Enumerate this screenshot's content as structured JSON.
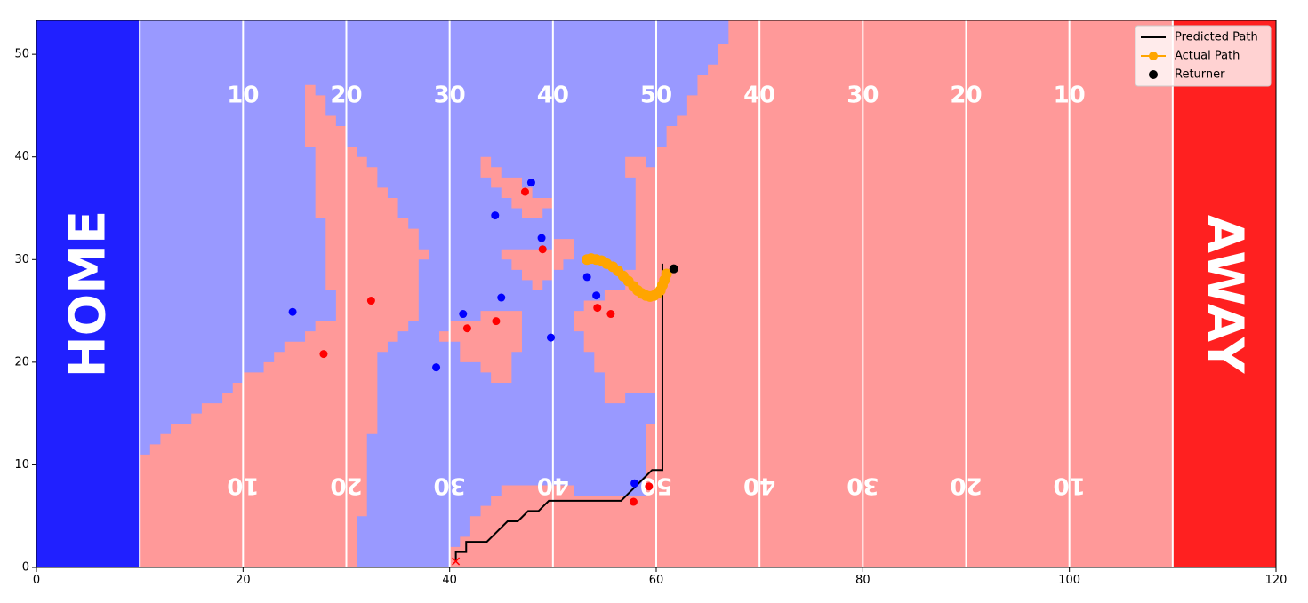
{
  "chart_data": {
    "type": "scatter",
    "title": "",
    "xlabel": "",
    "ylabel": "",
    "xlim": [
      0,
      120
    ],
    "ylim": [
      0,
      53.3
    ],
    "x_ticks": [
      0,
      20,
      40,
      60,
      80,
      100,
      120
    ],
    "y_ticks": [
      0,
      10,
      20,
      30,
      40,
      50
    ],
    "grid": false,
    "legend_position": "top-right",
    "colors": {
      "home_endzone": "#2020ff",
      "away_endzone": "#ff2020",
      "home_region": "#9999ff",
      "away_region": "#ff9999",
      "home_players": "#0000ff",
      "away_players": "#ff0000",
      "predicted_path": "#000000",
      "actual_path": "#ffa500",
      "returner": "#000000",
      "yard_lines": "#ffffff"
    },
    "endzones": {
      "home_label": "HOME",
      "away_label": "AWAY",
      "home_range": [
        0,
        10
      ],
      "away_range": [
        110,
        120
      ]
    },
    "yard_lines_x": [
      10,
      20,
      30,
      40,
      50,
      60,
      70,
      80,
      90,
      100,
      110
    ],
    "yard_numbers": [
      {
        "x": 20,
        "label": "10"
      },
      {
        "x": 30,
        "label": "20"
      },
      {
        "x": 40,
        "label": "30"
      },
      {
        "x": 50,
        "label": "40"
      },
      {
        "x": 60,
        "label": "50"
      },
      {
        "x": 70,
        "label": "40"
      },
      {
        "x": 80,
        "label": "30"
      },
      {
        "x": 90,
        "label": "20"
      },
      {
        "x": 100,
        "label": "10"
      }
    ],
    "yard_numbers_top_y": 46,
    "yard_numbers_bottom_y": 8,
    "legend": [
      {
        "label": "Predicted Path",
        "kind": "line",
        "color": "#000000"
      },
      {
        "label": "Actual Path",
        "kind": "line-marker",
        "color": "#ffa500"
      },
      {
        "label": "Returner",
        "kind": "marker",
        "color": "#000000"
      }
    ],
    "series": [
      {
        "name": "Predicted Path",
        "kind": "line",
        "x": [
          40.6,
          40.6,
          41.6,
          41.6,
          42.6,
          42.6,
          43.6,
          43.6,
          44.6,
          45.6,
          45.6,
          46.6,
          47.6,
          47.6,
          48.6,
          48.6,
          49.6,
          49.6,
          56.6,
          57.6,
          58.6,
          59.6,
          60.6,
          60.6
        ],
        "y": [
          0.6,
          1.5,
          1.5,
          2.5,
          2.5,
          2.5,
          2.5,
          2.5,
          3.5,
          4.5,
          4.5,
          4.5,
          5.5,
          5.5,
          5.5,
          5.5,
          6.5,
          6.5,
          6.5,
          7.5,
          8.5,
          9.5,
          9.5,
          29.6
        ]
      },
      {
        "name": "Actual Path",
        "kind": "line-marker",
        "x": [
          53.3,
          53.7,
          54.2,
          54.7,
          55.2,
          55.8,
          56.3,
          56.8,
          57.3,
          57.8,
          58.2,
          58.6,
          59.0,
          59.4,
          59.8,
          60.1,
          60.4,
          60.6,
          60.8,
          61.0
        ],
        "y": [
          30.0,
          30.1,
          30.0,
          29.9,
          29.6,
          29.3,
          28.9,
          28.4,
          27.9,
          27.4,
          27.0,
          26.7,
          26.5,
          26.4,
          26.5,
          26.7,
          27.0,
          27.5,
          28.0,
          28.6
        ]
      },
      {
        "name": "Returner",
        "kind": "marker",
        "x": [
          61.7
        ],
        "y": [
          29.1
        ]
      },
      {
        "kind": "home-players",
        "x": [
          24.8,
          38.7,
          41.3,
          44.4,
          45.0,
          47.9,
          48.9,
          49.8,
          53.3,
          54.2,
          57.9
        ],
        "y": [
          24.9,
          19.5,
          24.7,
          34.3,
          26.3,
          37.5,
          32.1,
          22.4,
          28.3,
          26.5,
          8.2
        ]
      },
      {
        "kind": "away-players",
        "x": [
          27.8,
          32.4,
          41.7,
          44.5,
          47.3,
          49.0,
          54.3,
          55.6,
          57.8,
          59.3
        ],
        "y": [
          20.8,
          26.0,
          23.3,
          24.0,
          36.6,
          31.0,
          25.3,
          24.7,
          6.4,
          7.9
        ]
      },
      {
        "kind": "start-marker",
        "x": [
          40.6
        ],
        "y": [
          0.6
        ]
      }
    ],
    "away_region_polygons": [
      [
        [
          0,
          0
        ],
        [
          0,
          3.5
        ],
        [
          3,
          5
        ],
        [
          5,
          6.5
        ],
        [
          7,
          8
        ],
        [
          8.5,
          9.5
        ],
        [
          10,
          11
        ],
        [
          10,
          11
        ],
        [
          11,
          11
        ],
        [
          11,
          12
        ],
        [
          12,
          12
        ],
        [
          12,
          13
        ],
        [
          13,
          13
        ],
        [
          13,
          14
        ],
        [
          15,
          14
        ],
        [
          15,
          15
        ],
        [
          16,
          15
        ],
        [
          16,
          16
        ],
        [
          18,
          16
        ],
        [
          18,
          17
        ],
        [
          19,
          17
        ],
        [
          19,
          18
        ],
        [
          20,
          18
        ],
        [
          20,
          19
        ],
        [
          22,
          19
        ],
        [
          22,
          20
        ],
        [
          23,
          20
        ],
        [
          23,
          21
        ],
        [
          24,
          21
        ],
        [
          24,
          22
        ],
        [
          26,
          22
        ],
        [
          26,
          23
        ],
        [
          27,
          23
        ],
        [
          27,
          24
        ],
        [
          29,
          24
        ],
        [
          29,
          27
        ],
        [
          28,
          27
        ],
        [
          28,
          34
        ],
        [
          27,
          34
        ],
        [
          27,
          41
        ],
        [
          26,
          41
        ],
        [
          26,
          47
        ],
        [
          27,
          47
        ],
        [
          27,
          46
        ],
        [
          28,
          46
        ],
        [
          28,
          44
        ],
        [
          29,
          44
        ],
        [
          29,
          43
        ],
        [
          30,
          43
        ],
        [
          30,
          41
        ],
        [
          31,
          41
        ],
        [
          31,
          40
        ],
        [
          32,
          40
        ],
        [
          32,
          39
        ],
        [
          33,
          39
        ],
        [
          33,
          37
        ],
        [
          34,
          37
        ],
        [
          34,
          36
        ],
        [
          35,
          36
        ],
        [
          35,
          34
        ],
        [
          36,
          34
        ],
        [
          36,
          33
        ],
        [
          37,
          33
        ],
        [
          37,
          31
        ],
        [
          38,
          31
        ],
        [
          38,
          30
        ],
        [
          37,
          30
        ],
        [
          37,
          24
        ],
        [
          36,
          24
        ],
        [
          36,
          23
        ],
        [
          35,
          23
        ],
        [
          35,
          22
        ],
        [
          34,
          22
        ],
        [
          34,
          21
        ],
        [
          33,
          21
        ],
        [
          33,
          13
        ],
        [
          32,
          13
        ],
        [
          32,
          5
        ],
        [
          31,
          5
        ],
        [
          31,
          0
        ]
      ],
      [
        [
          40,
          0
        ],
        [
          40,
          2
        ],
        [
          41,
          2
        ],
        [
          41,
          3
        ],
        [
          42,
          3
        ],
        [
          42,
          5
        ],
        [
          43,
          5
        ],
        [
          43,
          6
        ],
        [
          44,
          6
        ],
        [
          44,
          7
        ],
        [
          45,
          7
        ],
        [
          45,
          8
        ],
        [
          52,
          8
        ],
        [
          52,
          7
        ],
        [
          59,
          7
        ],
        [
          59,
          14
        ],
        [
          60,
          14
        ],
        [
          60,
          17
        ],
        [
          57,
          17
        ],
        [
          57,
          16
        ],
        [
          55,
          16
        ],
        [
          55,
          19
        ],
        [
          54,
          19
        ],
        [
          54,
          21
        ],
        [
          53,
          21
        ],
        [
          53,
          23
        ],
        [
          52,
          23
        ],
        [
          52,
          25
        ],
        [
          53,
          25
        ],
        [
          53,
          26
        ],
        [
          55,
          26
        ],
        [
          55,
          27
        ],
        [
          57,
          27
        ],
        [
          57,
          29
        ],
        [
          58,
          29
        ],
        [
          58,
          38
        ],
        [
          57,
          38
        ],
        [
          57,
          40
        ],
        [
          59,
          40
        ],
        [
          59,
          39
        ],
        [
          60,
          39
        ],
        [
          60,
          41
        ],
        [
          61,
          41
        ],
        [
          61,
          43
        ],
        [
          62,
          43
        ],
        [
          62,
          44
        ],
        [
          63,
          44
        ],
        [
          63,
          46
        ],
        [
          64,
          46
        ],
        [
          64,
          48
        ],
        [
          65,
          48
        ],
        [
          65,
          49
        ],
        [
          66,
          49
        ],
        [
          66,
          51
        ],
        [
          67,
          51
        ],
        [
          67,
          53.3
        ],
        [
          120,
          53.3
        ],
        [
          120,
          0
        ]
      ],
      [
        [
          39,
          22
        ],
        [
          39,
          23
        ],
        [
          40,
          23
        ],
        [
          40,
          24
        ],
        [
          41,
          24
        ],
        [
          41,
          20
        ],
        [
          43,
          20
        ],
        [
          43,
          19
        ],
        [
          44,
          19
        ],
        [
          44,
          18
        ],
        [
          46,
          18
        ],
        [
          46,
          21
        ],
        [
          47,
          21
        ],
        [
          47,
          25
        ],
        [
          43,
          25
        ],
        [
          43,
          24
        ],
        [
          41,
          24
        ],
        [
          41,
          22
        ]
      ],
      [
        [
          43,
          38
        ],
        [
          43,
          40
        ],
        [
          44,
          40
        ],
        [
          44,
          39
        ],
        [
          45,
          39
        ],
        [
          45,
          38
        ],
        [
          47,
          38
        ],
        [
          47,
          37
        ],
        [
          48,
          37
        ],
        [
          48,
          36
        ],
        [
          50,
          36
        ],
        [
          50,
          35
        ],
        [
          49,
          35
        ],
        [
          49,
          34
        ],
        [
          47,
          34
        ],
        [
          47,
          35
        ],
        [
          46,
          35
        ],
        [
          46,
          36
        ],
        [
          45,
          36
        ],
        [
          45,
          37
        ],
        [
          44,
          37
        ],
        [
          44,
          38
        ]
      ],
      [
        [
          45,
          30
        ],
        [
          45,
          31
        ],
        [
          50,
          31
        ],
        [
          50,
          32
        ],
        [
          52,
          32
        ],
        [
          52,
          30
        ],
        [
          51,
          30
        ],
        [
          51,
          29
        ],
        [
          50,
          29
        ],
        [
          50,
          28
        ],
        [
          49,
          28
        ],
        [
          49,
          27
        ],
        [
          48,
          27
        ],
        [
          48,
          28
        ],
        [
          47,
          28
        ],
        [
          47,
          29
        ],
        [
          46,
          29
        ],
        [
          46,
          30
        ]
      ]
    ]
  }
}
